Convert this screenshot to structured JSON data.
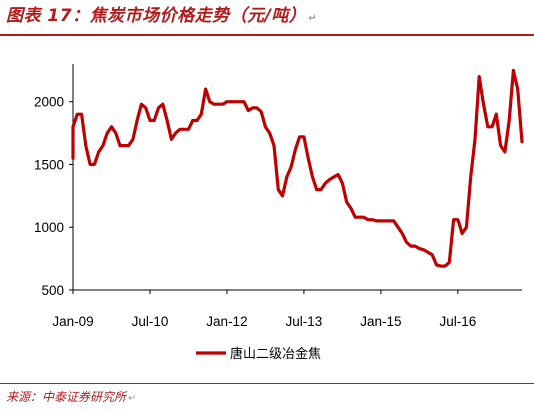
{
  "header": {
    "title": "图表 17：焦炭市场价格走势（元/吨）",
    "title_mark": "↵"
  },
  "footer": {
    "source": "来源：中泰证券研究所",
    "source_mark": "↵"
  },
  "colors": {
    "accent": "#b31b1b",
    "series": "#c00000"
  },
  "chart_data": {
    "type": "line",
    "title": "图表 17：焦炭市场价格走势（元/吨）",
    "xlabel": "",
    "ylabel": "",
    "ylim": [
      500,
      2300
    ],
    "yticks": [
      500,
      1000,
      1500,
      2000
    ],
    "xlim": [
      "2009-01",
      "2017-10"
    ],
    "xticks": [
      {
        "label": "Jan-09",
        "x": "2009-01"
      },
      {
        "label": "Jul-10",
        "x": "2010-07"
      },
      {
        "label": "Jan-12",
        "x": "2012-01"
      },
      {
        "label": "Jul-13",
        "x": "2013-07"
      },
      {
        "label": "Jan-15",
        "x": "2015-01"
      },
      {
        "label": "Jul-16",
        "x": "2016-07"
      }
    ],
    "grid": false,
    "legend_position": "bottom",
    "series": [
      {
        "name": "唐山二级冶金焦",
        "points": [
          [
            "2009-01",
            1550
          ],
          [
            "2009-01",
            1800
          ],
          [
            "2009-02",
            1900
          ],
          [
            "2009-03",
            1900
          ],
          [
            "2009-04",
            1650
          ],
          [
            "2009-05",
            1500
          ],
          [
            "2009-06",
            1500
          ],
          [
            "2009-07",
            1600
          ],
          [
            "2009-08",
            1650
          ],
          [
            "2009-09",
            1750
          ],
          [
            "2009-10",
            1800
          ],
          [
            "2009-11",
            1750
          ],
          [
            "2009-12",
            1650
          ],
          [
            "2010-01",
            1650
          ],
          [
            "2010-02",
            1650
          ],
          [
            "2010-03",
            1700
          ],
          [
            "2010-04",
            1850
          ],
          [
            "2010-05",
            1980
          ],
          [
            "2010-06",
            1950
          ],
          [
            "2010-07",
            1850
          ],
          [
            "2010-08",
            1850
          ],
          [
            "2010-09",
            1950
          ],
          [
            "2010-10",
            1980
          ],
          [
            "2010-11",
            1850
          ],
          [
            "2010-12",
            1700
          ],
          [
            "2011-01",
            1750
          ],
          [
            "2011-02",
            1780
          ],
          [
            "2011-03",
            1780
          ],
          [
            "2011-04",
            1780
          ],
          [
            "2011-05",
            1850
          ],
          [
            "2011-06",
            1850
          ],
          [
            "2011-07",
            1900
          ],
          [
            "2011-08",
            2100
          ],
          [
            "2011-09",
            2000
          ],
          [
            "2011-10",
            1980
          ],
          [
            "2011-11",
            1980
          ],
          [
            "2011-12",
            1980
          ],
          [
            "2012-01",
            2000
          ],
          [
            "2012-02",
            2000
          ],
          [
            "2012-03",
            2000
          ],
          [
            "2012-04",
            2000
          ],
          [
            "2012-05",
            2000
          ],
          [
            "2012-06",
            1930
          ],
          [
            "2012-07",
            1950
          ],
          [
            "2012-08",
            1950
          ],
          [
            "2012-09",
            1920
          ],
          [
            "2012-10",
            1800
          ],
          [
            "2012-11",
            1750
          ],
          [
            "2012-12",
            1650
          ],
          [
            "2013-01",
            1300
          ],
          [
            "2013-02",
            1250
          ],
          [
            "2013-03",
            1400
          ],
          [
            "2013-04",
            1480
          ],
          [
            "2013-05",
            1620
          ],
          [
            "2013-06",
            1720
          ],
          [
            "2013-07",
            1720
          ],
          [
            "2013-08",
            1550
          ],
          [
            "2013-09",
            1400
          ],
          [
            "2013-10",
            1300
          ],
          [
            "2013-11",
            1300
          ],
          [
            "2013-12",
            1350
          ],
          [
            "2014-01",
            1380
          ],
          [
            "2014-02",
            1400
          ],
          [
            "2014-03",
            1420
          ],
          [
            "2014-04",
            1350
          ],
          [
            "2014-05",
            1200
          ],
          [
            "2014-06",
            1150
          ],
          [
            "2014-07",
            1080
          ],
          [
            "2014-08",
            1080
          ],
          [
            "2014-09",
            1080
          ],
          [
            "2014-10",
            1060
          ],
          [
            "2014-11",
            1060
          ],
          [
            "2014-12",
            1050
          ],
          [
            "2015-01",
            1050
          ],
          [
            "2015-02",
            1050
          ],
          [
            "2015-03",
            1050
          ],
          [
            "2015-04",
            1050
          ],
          [
            "2015-05",
            1000
          ],
          [
            "2015-06",
            950
          ],
          [
            "2015-07",
            880
          ],
          [
            "2015-08",
            850
          ],
          [
            "2015-09",
            850
          ],
          [
            "2015-10",
            830
          ],
          [
            "2015-11",
            820
          ],
          [
            "2015-12",
            800
          ],
          [
            "2016-01",
            780
          ],
          [
            "2016-02",
            700
          ],
          [
            "2016-03",
            690
          ],
          [
            "2016-04",
            690
          ],
          [
            "2016-05",
            720
          ],
          [
            "2016-06",
            1060
          ],
          [
            "2016-07",
            1060
          ],
          [
            "2016-08",
            950
          ],
          [
            "2016-09",
            1000
          ],
          [
            "2016-10",
            1400
          ],
          [
            "2016-11",
            1700
          ],
          [
            "2016-12",
            2200
          ],
          [
            "2017-01",
            1980
          ],
          [
            "2017-02",
            1800
          ],
          [
            "2017-03",
            1800
          ],
          [
            "2017-04",
            1900
          ],
          [
            "2017-05",
            1650
          ],
          [
            "2017-06",
            1600
          ],
          [
            "2017-07",
            1850
          ],
          [
            "2017-08",
            2250
          ],
          [
            "2017-09",
            2100
          ],
          [
            "2017-10",
            1680
          ]
        ]
      }
    ]
  }
}
